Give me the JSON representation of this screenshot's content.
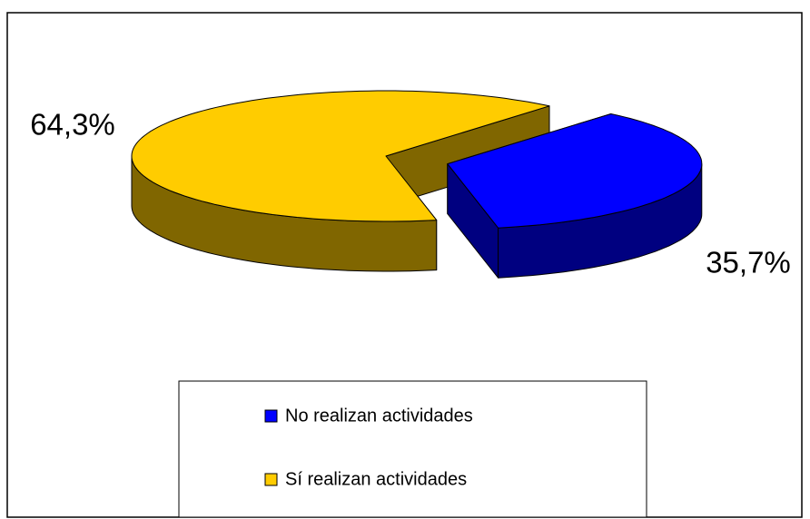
{
  "chart_data": {
    "type": "pie3d",
    "categories": [
      "No realizan actividades",
      "Sí realizan actividades"
    ],
    "values": [
      35.7,
      64.3
    ],
    "value_labels": [
      "35,7%",
      "64,3%"
    ],
    "colors": [
      "#0000ff",
      "#ffcc00"
    ],
    "legend": "bottom"
  }
}
